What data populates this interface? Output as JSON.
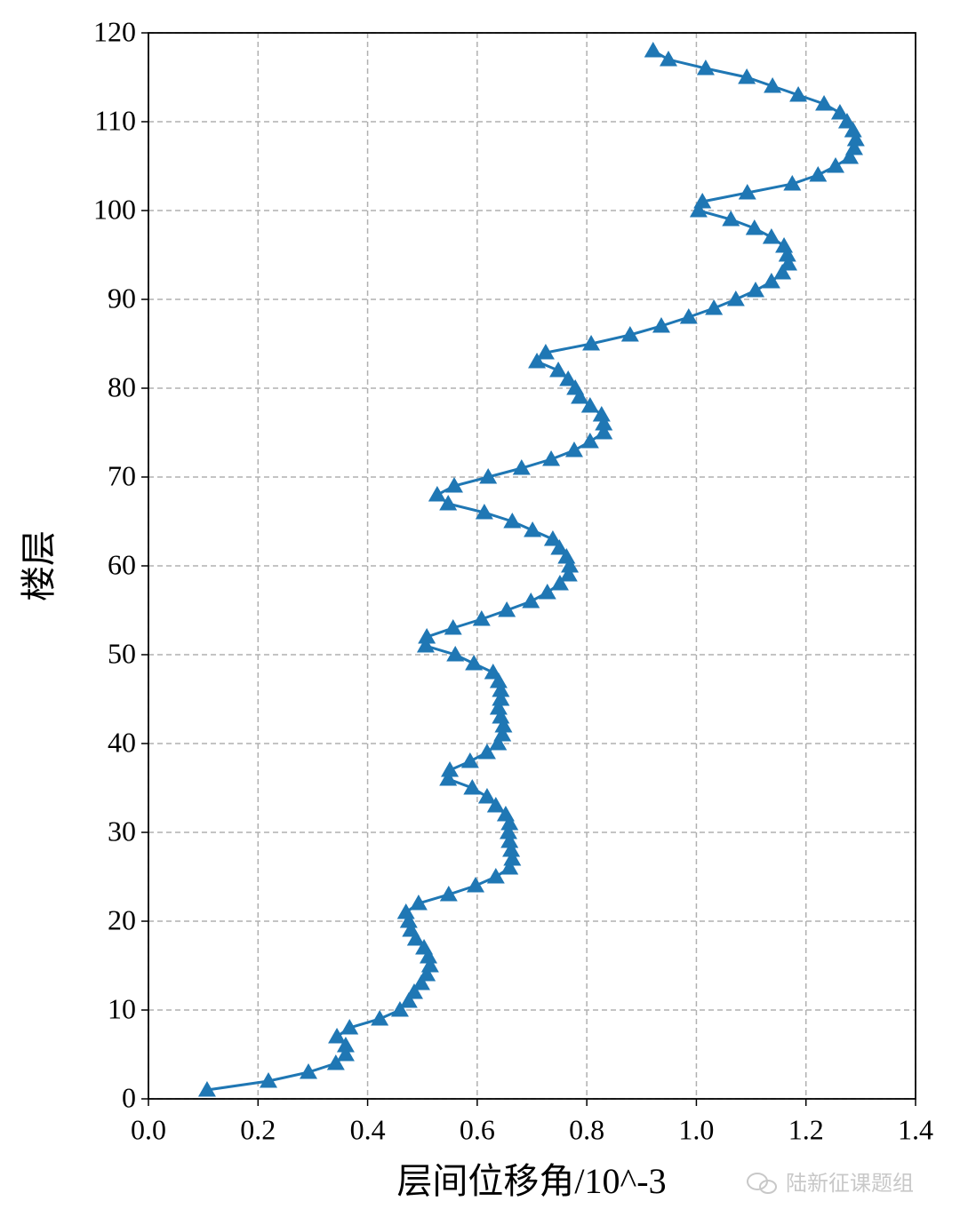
{
  "chart_data": {
    "type": "line",
    "xlabel": "层间位移角/10^-3",
    "ylabel": "楼层",
    "watermark": "陆新征课题组",
    "marker": "triangle",
    "grid": true,
    "xlim": [
      0,
      1.4
    ],
    "ylim": [
      0,
      120
    ],
    "xticks": [
      {
        "value": 0,
        "label": "0.0"
      },
      0.2,
      0.4,
      0.6,
      0.8,
      {
        "value": 1,
        "label": "1.0"
      },
      1.2,
      1.4
    ],
    "yticks": [
      0,
      10,
      20,
      30,
      40,
      50,
      60,
      70,
      80,
      90,
      100,
      110,
      120
    ],
    "x": [
      0.107,
      0.219,
      0.292,
      0.342,
      0.36,
      0.36,
      0.344,
      0.367,
      0.422,
      0.459,
      0.475,
      0.485,
      0.498,
      0.508,
      0.514,
      0.511,
      0.503,
      0.488,
      0.479,
      0.475,
      0.47,
      0.493,
      0.548,
      0.597,
      0.634,
      0.659,
      0.664,
      0.662,
      0.659,
      0.657,
      0.659,
      0.652,
      0.634,
      0.618,
      0.591,
      0.547,
      0.55,
      0.587,
      0.618,
      0.638,
      0.646,
      0.648,
      0.643,
      0.639,
      0.643,
      0.643,
      0.639,
      0.629,
      0.594,
      0.56,
      0.506,
      0.508,
      0.556,
      0.608,
      0.654,
      0.698,
      0.728,
      0.751,
      0.767,
      0.769,
      0.763,
      0.75,
      0.738,
      0.701,
      0.664,
      0.613,
      0.547,
      0.527,
      0.558,
      0.62,
      0.681,
      0.735,
      0.777,
      0.806,
      0.831,
      0.831,
      0.827,
      0.806,
      0.787,
      0.779,
      0.766,
      0.748,
      0.709,
      0.725,
      0.808,
      0.879,
      0.936,
      0.986,
      1.032,
      1.072,
      1.108,
      1.137,
      1.157,
      1.168,
      1.166,
      1.16,
      1.137,
      1.106,
      1.063,
      1.004,
      1.011,
      1.093,
      1.175,
      1.222,
      1.254,
      1.28,
      1.288,
      1.291,
      1.286,
      1.275,
      1.262,
      1.233,
      1.186,
      1.139,
      1.092,
      1.017,
      0.949,
      0.921
    ],
    "series": [
      {
        "color": "#1f77b4",
        "values": [
          1,
          2,
          3,
          4,
          5,
          6,
          7,
          8,
          9,
          10,
          11,
          12,
          13,
          14,
          15,
          16,
          17,
          18,
          19,
          20,
          21,
          22,
          23,
          24,
          25,
          26,
          27,
          28,
          29,
          30,
          31,
          32,
          33,
          34,
          35,
          36,
          37,
          38,
          39,
          40,
          41,
          42,
          43,
          44,
          45,
          46,
          47,
          48,
          49,
          50,
          51,
          52,
          53,
          54,
          55,
          56,
          57,
          58,
          59,
          60,
          61,
          62,
          63,
          64,
          65,
          66,
          67,
          68,
          69,
          70,
          71,
          72,
          73,
          74,
          75,
          76,
          77,
          78,
          79,
          80,
          81,
          82,
          83,
          84,
          85,
          86,
          87,
          88,
          89,
          90,
          91,
          92,
          93,
          94,
          95,
          96,
          97,
          98,
          99,
          100,
          101,
          102,
          103,
          104,
          105,
          106,
          107,
          108,
          109,
          110,
          111,
          112,
          113,
          114,
          115,
          116,
          117,
          118
        ]
      }
    ]
  }
}
